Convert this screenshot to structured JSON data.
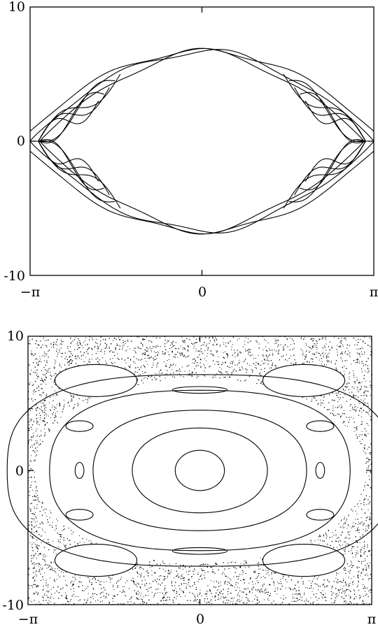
{
  "chart_data": [
    {
      "type": "line",
      "xlim": [
        "-π",
        "π"
      ],
      "ylim": [
        -10,
        10
      ],
      "x_tick_labels": [
        "−π",
        "0",
        "π"
      ],
      "y_tick_labels": [
        "-10",
        "0",
        "10"
      ],
      "grid": false,
      "series": [
        {
          "kind": "separatrix-envelope",
          "amplitude": 6.7,
          "phase_offsets": [
            0.0,
            0.18,
            -0.18
          ]
        },
        {
          "kind": "separatrix-lobes",
          "amplitude": 6.7
        }
      ]
    },
    {
      "type": "scatter",
      "xlim": [
        "-π",
        "π"
      ],
      "ylim": [
        -10,
        10
      ],
      "x_tick_labels": [
        "−π",
        "0",
        "π"
      ],
      "y_tick_labels": [
        "-10",
        "0",
        "10"
      ],
      "grid": false,
      "chaotic_sea_points": 9000,
      "invariant_curves_half_widths": [
        [
          0.45,
          1.5
        ],
        [
          1.25,
          3.2
        ],
        [
          2.0,
          4.6
        ],
        [
          2.85,
          6.2
        ],
        [
          3.7,
          7.5
        ]
      ],
      "island_chains": [
        {
          "x": 0.0,
          "y": 6.0,
          "rx": 0.5,
          "ry": 0.25
        },
        {
          "x": 0.0,
          "y": -6.0,
          "rx": 0.5,
          "ry": 0.25
        },
        {
          "x": -1.9,
          "y": 6.7,
          "rx": 0.75,
          "ry": 1.2
        },
        {
          "x": 1.9,
          "y": 6.7,
          "rx": 0.75,
          "ry": 1.2
        },
        {
          "x": -1.9,
          "y": -6.7,
          "rx": 0.75,
          "ry": 1.2
        },
        {
          "x": 1.9,
          "y": -6.7,
          "rx": 0.75,
          "ry": 1.2
        },
        {
          "x": -2.2,
          "y": 3.3,
          "rx": 0.25,
          "ry": 0.4
        },
        {
          "x": 2.2,
          "y": 3.3,
          "rx": 0.25,
          "ry": 0.4
        },
        {
          "x": -2.2,
          "y": -3.3,
          "rx": 0.25,
          "ry": 0.4
        },
        {
          "x": 2.2,
          "y": -3.3,
          "rx": 0.25,
          "ry": 0.4
        },
        {
          "x": -2.2,
          "y": 0.0,
          "rx": 0.08,
          "ry": 0.6
        },
        {
          "x": 2.2,
          "y": 0.0,
          "rx": 0.08,
          "ry": 0.6
        }
      ]
    }
  ]
}
